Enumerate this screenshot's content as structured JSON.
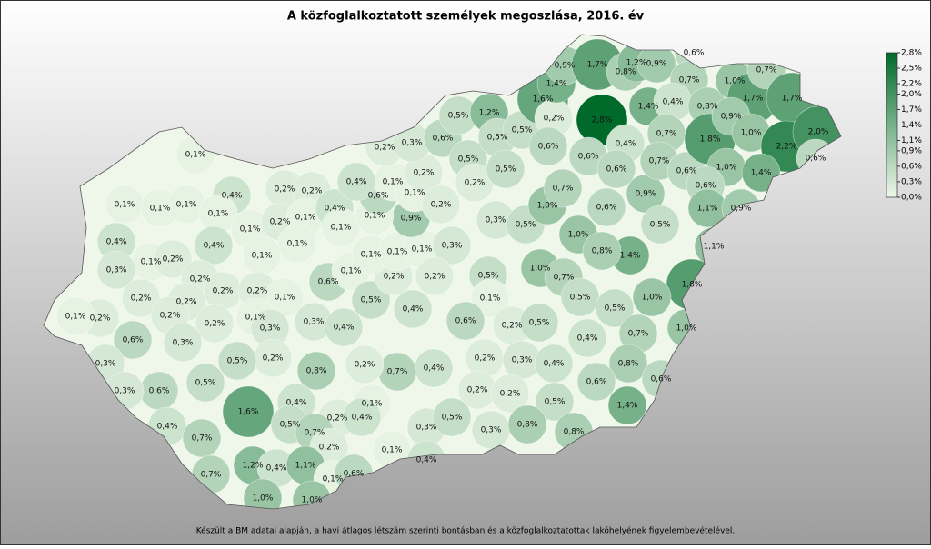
{
  "title": "A közfoglalkoztatott személyek megoszlása, 2016. év",
  "footer": "Készült a BM adatai alapján, a havi átlagos létszám szerinti bontásban és a közfoglalkoztatottak lakóhelyének figyelembevételével.",
  "color_low": "#eef7e9",
  "color_high": "#006a2a",
  "legend": {
    "lim": [
      0,
      2.8
    ],
    "ticks": [
      {
        "value": 2.8,
        "label": "2,8%"
      },
      {
        "value": 2.5,
        "label": "2,5%"
      },
      {
        "value": 2.2,
        "label": "2,2%"
      },
      {
        "value": 2.0,
        "label": "2,0%"
      },
      {
        "value": 1.7,
        "label": "1,7%"
      },
      {
        "value": 1.4,
        "label": "1,4%"
      },
      {
        "value": 1.1,
        "label": "1,1%"
      },
      {
        "value": 0.9,
        "label": "0,9%"
      },
      {
        "value": 0.6,
        "label": "0,6%"
      },
      {
        "value": 0.3,
        "label": "0,3%"
      },
      {
        "value": 0.0,
        "label": "0,0%"
      }
    ]
  },
  "regions": {
    "value_labels": [
      "0,1%",
      "0,1%",
      "0,1%",
      "0,1%",
      "0,4%",
      "0,1%",
      "0,1%",
      "0,2%",
      "0,2%",
      "0,2%",
      "0,1%",
      "0,4%",
      "0,1%",
      "0,1%",
      "0,1%",
      "0,4%",
      "0,4%",
      "0,1%",
      "0,2%",
      "0,3%",
      "0,2%",
      "0,2%",
      "0,2%",
      "0,1%",
      "0,2%",
      "0,2%",
      "0,2%",
      "0,1%",
      "0,2%",
      "0,2%",
      "0,1%",
      "0,3%",
      "0,6%",
      "0,3%",
      "0,3%",
      "0,4%",
      "0,6%",
      "0,1%",
      "0,5%",
      "0,2%",
      "0,1%",
      "0,1%",
      "0,1%",
      "0,3%",
      "0,2%",
      "0,9%",
      "0,1%",
      "0,6%",
      "0,1%",
      "0,1%",
      "0,2%",
      "0,4%",
      "0,2%",
      "0,3%",
      "0,6%",
      "0,5%",
      "1,2%",
      "0,5%",
      "0,2%",
      "0,2%",
      "0,5%",
      "0,5%",
      "0,5%",
      "0,3%",
      "0,5%",
      "1,0%",
      "1,6%",
      "0,2%",
      "0,6%",
      "1,4%",
      "0,9%",
      "1,7%",
      "2,8%",
      "0,8%",
      "1,2%",
      "0,9%",
      "0,6%",
      "0,7%",
      "1,4%",
      "0,4%",
      "0,7%",
      "0,4%",
      "0,6%",
      "0,6%",
      "0,7%",
      "0,9%",
      "0,6%",
      "0,7%",
      "0,6%",
      "0,8%",
      "1,8%",
      "1,0%",
      "1,7%",
      "0,7%",
      "0,9%",
      "1,0%",
      "1,7%",
      "2,2%",
      "2,0%",
      "0,6%",
      "1,0%",
      "0,6%",
      "1,4%",
      "1,1%",
      "0,9%",
      "0,5%",
      "1,1%",
      "1,4%",
      "1,0%",
      "0,8%",
      "0,5%",
      "0,1%",
      "1,0%",
      "0,7%",
      "0,5%",
      "0,5%",
      "1,8%",
      "1,0%",
      "0,6%",
      "0,4%",
      "0,2%",
      "0,5%",
      "0,4%",
      "0,7%",
      "1,0%",
      "0,2%",
      "0,3%",
      "0,4%",
      "0,8%",
      "0,6%",
      "0,4%",
      "0,7%",
      "0,2%",
      "0,8%",
      "0,2%",
      "0,5%",
      "0,5%",
      "0,6%",
      "0,3%",
      "0,3%",
      "1,6%",
      "0,4%",
      "0,1%",
      "0,2%",
      "0,4%",
      "0,2%",
      "0,2%",
      "0,5%",
      "0,6%",
      "1,4%",
      "0,4%",
      "0,7%",
      "0,5%",
      "0,7%",
      "0,3%",
      "0,5%",
      "0,3%",
      "0,8%",
      "0,8%",
      "0,2%",
      "1,2%",
      "0,4%",
      "1,1%",
      "0,1%",
      "0,4%",
      "0,7%",
      "0,1%",
      "0,6%",
      "1,0%",
      "1,0%"
    ],
    "values": [
      0.1,
      0.1,
      0.1,
      0.1,
      0.4,
      0.1,
      0.1,
      0.2,
      0.2,
      0.2,
      0.1,
      0.4,
      0.1,
      0.1,
      0.1,
      0.4,
      0.4,
      0.1,
      0.2,
      0.3,
      0.2,
      0.2,
      0.2,
      0.1,
      0.2,
      0.2,
      0.2,
      0.1,
      0.2,
      0.2,
      0.1,
      0.3,
      0.6,
      0.3,
      0.3,
      0.4,
      0.6,
      0.1,
      0.5,
      0.2,
      0.1,
      0.1,
      0.1,
      0.3,
      0.2,
      0.9,
      0.1,
      0.6,
      0.1,
      0.1,
      0.2,
      0.4,
      0.2,
      0.3,
      0.6,
      0.5,
      1.2,
      0.5,
      0.2,
      0.2,
      0.5,
      0.5,
      0.5,
      0.3,
      0.5,
      1.0,
      1.6,
      0.2,
      0.6,
      1.4,
      0.9,
      1.7,
      2.8,
      0.8,
      1.2,
      0.9,
      0.6,
      0.7,
      1.4,
      0.4,
      0.7,
      0.4,
      0.6,
      0.6,
      0.7,
      0.9,
      0.6,
      0.7,
      0.6,
      0.8,
      1.8,
      1.0,
      1.7,
      0.7,
      0.9,
      1.0,
      1.7,
      2.2,
      2.0,
      0.6,
      1.0,
      0.6,
      1.4,
      1.1,
      0.9,
      0.5,
      1.1,
      1.4,
      1.0,
      0.8,
      0.5,
      0.1,
      1.0,
      0.7,
      0.5,
      0.5,
      1.8,
      1.0,
      0.6,
      0.4,
      0.2,
      0.5,
      0.4,
      0.7,
      1.0,
      0.2,
      0.3,
      0.4,
      0.8,
      0.6,
      0.4,
      0.7,
      0.2,
      0.8,
      0.2,
      0.5,
      0.5,
      0.6,
      0.3,
      0.3,
      1.6,
      0.4,
      0.1,
      0.2,
      0.4,
      0.2,
      0.2,
      0.5,
      0.6,
      1.4,
      0.4,
      0.7,
      0.5,
      0.7,
      0.3,
      0.5,
      0.3,
      0.8,
      0.8,
      0.2,
      1.2,
      0.4,
      1.1,
      0.1,
      0.4,
      0.7,
      0.1,
      0.6,
      1.0,
      1.0
    ]
  }
}
